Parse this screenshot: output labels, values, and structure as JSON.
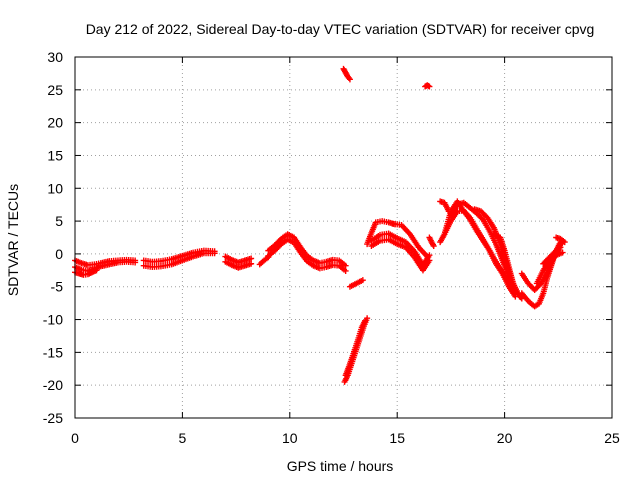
{
  "chart_data": {
    "type": "scatter",
    "title": "Day 212 of 2022, Sidereal Day-to-day VTEC variation (SDTVAR) for receiver cpvg",
    "xlabel": "GPS time / hours",
    "ylabel": "SDTVAR / TECUs",
    "xlim": [
      0,
      25
    ],
    "ylim": [
      -25,
      30
    ],
    "xticks": [
      0,
      5,
      10,
      15,
      20,
      25
    ],
    "yticks": [
      -25,
      -20,
      -15,
      -10,
      -5,
      0,
      5,
      10,
      15,
      20,
      25,
      30
    ],
    "grid": true,
    "marker": "plus",
    "series": [
      {
        "name": "SDTVAR",
        "color": "#ff0000",
        "tracks": [
          {
            "x": [
              0.0,
              0.3,
              0.6,
              0.9,
              1.2,
              1.6,
              2.0,
              2.4,
              2.8
            ],
            "y": [
              -2.0,
              -2.4,
              -2.6,
              -2.3,
              -1.9,
              -1.6,
              -1.3,
              -1.2,
              -1.3
            ]
          },
          {
            "x": [
              0.0,
              0.3,
              0.6,
              0.9,
              1.2,
              1.6,
              2.0,
              2.4,
              2.8
            ],
            "y": [
              -1.0,
              -1.4,
              -1.7,
              -1.6,
              -1.4,
              -1.1,
              -1.0,
              -0.9,
              -1.0
            ]
          },
          {
            "x": [
              0.0,
              0.2,
              0.4,
              0.6,
              0.8,
              1.0
            ],
            "y": [
              -2.8,
              -3.0,
              -3.2,
              -3.1,
              -2.8,
              -2.5
            ]
          },
          {
            "x": [
              3.2,
              3.6,
              4.0,
              4.5,
              5.0,
              5.5,
              6.0,
              6.5
            ],
            "y": [
              -1.8,
              -2.0,
              -1.9,
              -1.6,
              -1.0,
              -0.4,
              0.1,
              0.1
            ]
          },
          {
            "x": [
              3.2,
              3.6,
              4.0,
              4.5,
              5.0,
              5.5,
              6.0,
              6.5
            ],
            "y": [
              -1.0,
              -1.2,
              -1.1,
              -0.8,
              -0.3,
              0.2,
              0.5,
              0.4
            ]
          },
          {
            "x": [
              7.0,
              7.3,
              7.6,
              7.9,
              8.2
            ],
            "y": [
              -0.4,
              -0.9,
              -1.3,
              -1.0,
              -0.7
            ]
          },
          {
            "x": [
              7.0,
              7.3,
              7.6,
              7.9,
              8.2
            ],
            "y": [
              -1.2,
              -1.7,
              -2.1,
              -1.8,
              -1.5
            ]
          },
          {
            "x": [
              8.6,
              8.8,
              9.0
            ],
            "y": [
              -1.6,
              -1.0,
              -0.5
            ]
          },
          {
            "x": [
              9.0,
              9.3,
              9.6,
              9.9,
              10.2,
              10.5,
              10.8,
              11.1,
              11.4,
              11.7,
              12.0,
              12.3,
              12.6
            ],
            "y": [
              0.5,
              1.3,
              2.3,
              3.0,
              2.5,
              1.0,
              -0.3,
              -1.0,
              -1.4,
              -1.2,
              -0.9,
              -1.0,
              -1.8
            ]
          },
          {
            "x": [
              9.0,
              9.3,
              9.6,
              9.9,
              10.2,
              10.5,
              10.8,
              11.1,
              11.4,
              11.7,
              12.0,
              12.3,
              12.6
            ],
            "y": [
              -0.3,
              0.5,
              1.5,
              2.2,
              1.7,
              0.2,
              -1.1,
              -1.8,
              -2.2,
              -2.0,
              -1.7,
              -1.8,
              -2.6
            ]
          },
          {
            "x": [
              12.5,
              12.6,
              12.7,
              12.8
            ],
            "y": [
              28.2,
              27.6,
              27.0,
              26.6
            ]
          },
          {
            "x": [
              16.3,
              16.4,
              16.5
            ],
            "y": [
              25.5,
              25.7,
              25.5
            ]
          },
          {
            "x": [
              12.55,
              12.7,
              12.85,
              13.0,
              13.15,
              13.3,
              13.45,
              13.6
            ],
            "y": [
              -19.5,
              -18.5,
              -17.0,
              -15.5,
              -14.0,
              -12.5,
              -11.0,
              -9.8
            ]
          },
          {
            "x": [
              12.6,
              12.75,
              12.9,
              13.05,
              13.2,
              13.35,
              13.5
            ],
            "y": [
              -18.5,
              -17.2,
              -15.8,
              -14.3,
              -12.8,
              -11.2,
              -10.2
            ]
          },
          {
            "x": [
              12.8,
              13.1,
              13.4
            ],
            "y": [
              -5.0,
              -4.5,
              -4.0
            ]
          },
          {
            "x": [
              13.6,
              13.8,
              14.0,
              14.3,
              14.6,
              14.9
            ],
            "y": [
              1.5,
              3.2,
              4.8,
              5.0,
              4.8,
              4.5
            ]
          },
          {
            "x": [
              13.8,
              14.2,
              14.6,
              15.0,
              15.4,
              15.8,
              16.2,
              16.5
            ],
            "y": [
              1.2,
              2.0,
              2.2,
              1.5,
              1.0,
              -0.5,
              -2.5,
              -1.0
            ]
          },
          {
            "x": [
              13.8,
              14.2,
              14.6,
              15.0,
              15.4,
              15.8,
              16.2,
              16.5
            ],
            "y": [
              2.0,
              2.9,
              3.1,
              2.4,
              1.8,
              0.4,
              -1.7,
              -0.2
            ]
          },
          {
            "x": [
              14.8,
              15.2,
              15.6,
              16.0,
              16.4
            ],
            "y": [
              4.6,
              4.4,
              3.0,
              1.0,
              -0.4
            ]
          },
          {
            "x": [
              16.5,
              16.6,
              16.7
            ],
            "y": [
              2.5,
              1.8,
              1.2
            ]
          },
          {
            "x": [
              17.0,
              17.2,
              17.5,
              17.8,
              18.1,
              18.4,
              18.7,
              19.0,
              19.3,
              19.6,
              19.9,
              20.2,
              20.4
            ],
            "y": [
              1.8,
              3.0,
              5.0,
              6.5,
              6.6,
              5.5,
              3.8,
              2.2,
              0.5,
              -1.2,
              -2.8,
              -4.5,
              -5.8
            ]
          },
          {
            "x": [
              17.2,
              17.5,
              17.8,
              18.1,
              18.4,
              18.7,
              19.0,
              19.3,
              19.6,
              19.9,
              20.2,
              20.5
            ],
            "y": [
              3.0,
              6.5,
              8.0,
              6.5,
              5.2,
              3.5,
              2.0,
              0.5,
              -1.5,
              -3.0,
              -5.0,
              -6.5
            ]
          },
          {
            "x": [
              17.5,
              17.8,
              18.1,
              18.4,
              18.7,
              19.0,
              19.3,
              19.6,
              19.9,
              20.2,
              20.4
            ],
            "y": [
              6.0,
              7.5,
              7.8,
              7.0,
              6.2,
              5.2,
              3.5,
              1.5,
              -1.0,
              -3.5,
              -5.5
            ]
          },
          {
            "x": [
              18.6,
              18.9,
              19.2,
              19.5,
              19.8,
              20.1,
              20.4,
              20.7
            ],
            "y": [
              6.8,
              6.5,
              5.5,
              4.0,
              1.5,
              -1.5,
              -4.5,
              -6.5
            ]
          },
          {
            "x": [
              19.5,
              19.8,
              20.0,
              20.2,
              20.4,
              20.6,
              20.8
            ],
            "y": [
              3.0,
              2.5,
              0.5,
              -2.0,
              -4.5,
              -6.0,
              -6.8
            ]
          },
          {
            "x": [
              17.0,
              17.2,
              17.4
            ],
            "y": [
              8.0,
              7.8,
              6.5
            ]
          },
          {
            "x": [
              20.8,
              21.0,
              21.2,
              21.4,
              21.6,
              21.8,
              22.0,
              22.2,
              22.4,
              22.6
            ],
            "y": [
              -6.0,
              -6.8,
              -7.5,
              -8.0,
              -7.6,
              -6.0,
              -3.5,
              -1.5,
              0.5,
              1.8
            ]
          },
          {
            "x": [
              20.8,
              21.1,
              21.4,
              21.7,
              22.0,
              22.3,
              22.6
            ],
            "y": [
              -3.0,
              -4.5,
              -5.5,
              -4.5,
              -2.5,
              -0.5,
              1.0
            ]
          },
          {
            "x": [
              21.8,
              22.1,
              22.4,
              22.7
            ],
            "y": [
              -1.5,
              -0.5,
              0.5,
              1.8
            ]
          },
          {
            "x": [
              22.4,
              22.6,
              22.8
            ],
            "y": [
              2.5,
              2.3,
              1.8
            ]
          },
          {
            "x": [
              21.5,
              21.8,
              22.1,
              22.4,
              22.7
            ],
            "y": [
              -4.5,
              -2.5,
              -1.0,
              -0.2,
              0.2
            ]
          }
        ]
      }
    ]
  }
}
